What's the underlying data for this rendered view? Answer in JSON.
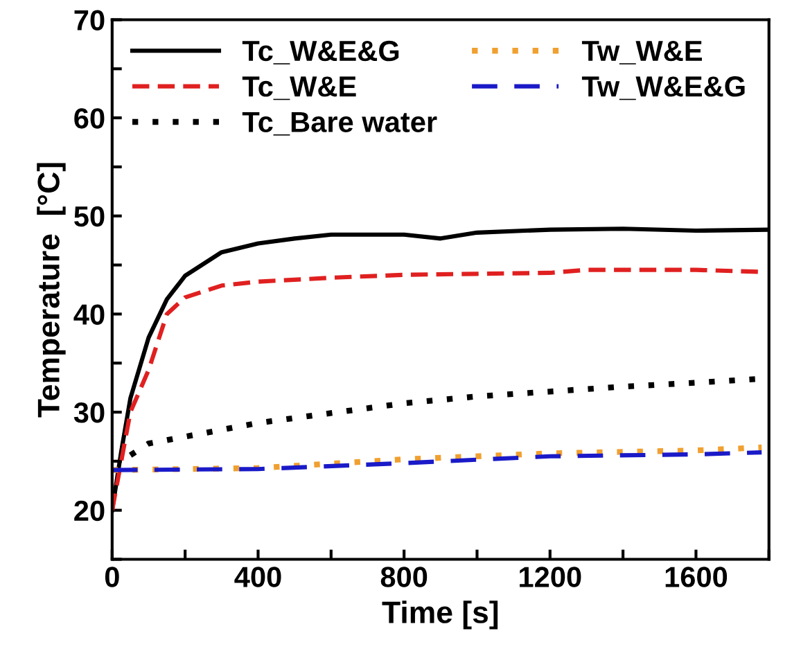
{
  "chart_data": {
    "type": "line",
    "xlabel": "Time [s]",
    "ylabel": "Temperature  [°C]",
    "xlim": [
      0,
      1800
    ],
    "ylim": [
      15,
      70
    ],
    "xticks": [
      0,
      {
        "value": 200,
        "label": null
      },
      400,
      {
        "value": 600,
        "label": null
      },
      800,
      {
        "value": 1000,
        "label": null
      },
      1200,
      {
        "value": 1400,
        "label": null
      },
      1600,
      {
        "value": 1800,
        "label": null
      }
    ],
    "yticks": [
      {
        "value": 15,
        "label": null
      },
      20,
      {
        "value": 25,
        "label": null
      },
      30,
      {
        "value": 35,
        "label": null
      },
      40,
      {
        "value": 45,
        "label": null
      },
      50,
      {
        "value": 55,
        "label": null
      },
      60,
      {
        "value": 65,
        "label": null
      },
      70
    ],
    "legend": "top left",
    "grid": false,
    "series": [
      {
        "name": "Tc_W&E&G",
        "color": "#000000",
        "line_style": "solid",
        "x": [
          0,
          25,
          50,
          100,
          150,
          200,
          300,
          400,
          500,
          600,
          800,
          900,
          1000,
          1200,
          1400,
          1600,
          1800
        ],
        "values": [
          20,
          26,
          31.4,
          37.6,
          41.5,
          43.9,
          46.3,
          47.2,
          47.7,
          48.1,
          48.1,
          47.7,
          48.3,
          48.6,
          48.7,
          48.5,
          48.6
        ]
      },
      {
        "name": "Tc_W&E",
        "color": "#e02020",
        "line_style": "dashed",
        "x": [
          0,
          50,
          100,
          150,
          200,
          300,
          400,
          600,
          800,
          1000,
          1200,
          1300,
          1600,
          1780
        ],
        "values": [
          20,
          30,
          34.3,
          40.0,
          41.7,
          42.9,
          43.3,
          43.7,
          44.0,
          44.1,
          44.2,
          44.5,
          44.5,
          44.3
        ]
      },
      {
        "name": "Tc_Bare water",
        "color": "#000000",
        "line_style": "dotted",
        "x": [
          50,
          100,
          200,
          400,
          600,
          800,
          1000,
          1200,
          1400,
          1600,
          1780
        ],
        "values": [
          25.6,
          26.8,
          27.5,
          28.9,
          29.9,
          30.9,
          31.6,
          32.1,
          32.6,
          33.0,
          33.4
        ]
      },
      {
        "name": "Tw_W&E",
        "color": "#f0a030",
        "line_style": "dotted",
        "x": [
          0,
          400,
          800,
          1200,
          1600,
          1780
        ],
        "values": [
          24.1,
          24.3,
          25.2,
          25.8,
          26.1,
          26.4
        ]
      },
      {
        "name": "Tw_W&E&G",
        "color": "#1a1ac8",
        "line_style": "dashed",
        "x": [
          0,
          400,
          800,
          1200,
          1600,
          1780
        ],
        "values": [
          24.1,
          24.2,
          24.8,
          25.5,
          25.7,
          25.9
        ]
      }
    ]
  }
}
